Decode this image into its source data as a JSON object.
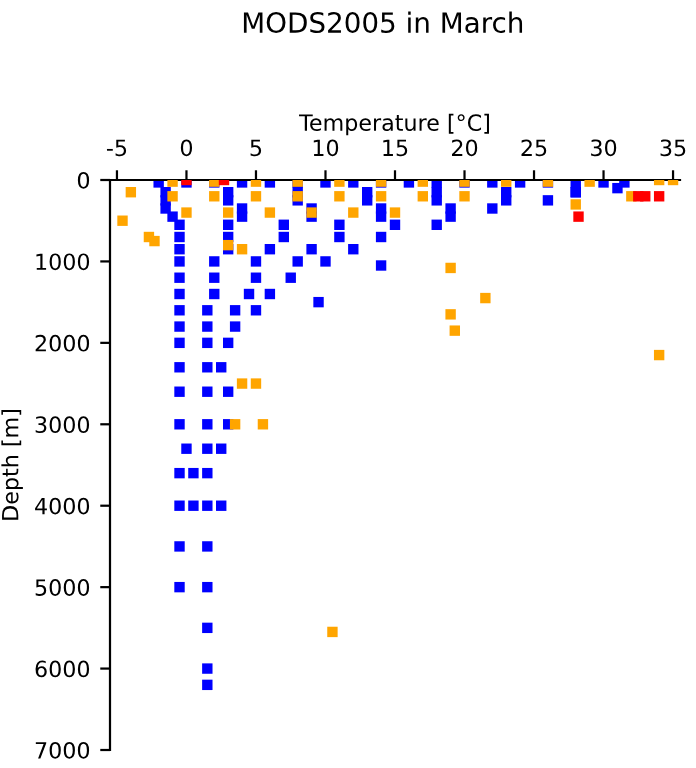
{
  "chart_data": {
    "type": "scatter",
    "title": "MODS2005 in March",
    "xlabel": "Temperature [°C]",
    "ylabel": "Depth [m]",
    "xlim": [
      -5.5,
      35.5
    ],
    "xticks": [
      -5,
      0,
      5,
      10,
      15,
      20,
      25,
      30,
      35
    ],
    "ylim": [
      7000,
      0
    ],
    "yticks": [
      0,
      1000,
      2000,
      3000,
      4000,
      5000,
      6000,
      7000
    ],
    "grid": false,
    "marker": "square",
    "series": [
      {
        "color": "#0000ff",
        "x": [
          -2,
          0,
          2,
          4,
          6,
          8,
          10,
          12,
          14,
          16,
          18,
          20,
          22,
          24,
          26,
          28,
          30,
          31.5,
          -1.5,
          3,
          8,
          13,
          18,
          23,
          28,
          -1.5,
          3,
          8,
          13,
          18,
          23,
          26,
          -1.5,
          4,
          9,
          14,
          19,
          22,
          -1,
          4,
          9,
          14,
          19,
          -0.5,
          3,
          7,
          11,
          15,
          18,
          -0.5,
          3,
          7,
          11,
          14,
          -0.5,
          3,
          6,
          9,
          12,
          -0.5,
          2,
          5,
          8,
          10,
          -0.5,
          2,
          5,
          7.5,
          -0.5,
          2,
          4.5,
          6,
          -0.5,
          1.5,
          3.5,
          5,
          -0.5,
          1.5,
          3.5,
          -0.5,
          1.5,
          3,
          -0.5,
          1.5,
          2.5,
          -0.5,
          1.5,
          3,
          -0.5,
          1.5,
          3,
          0,
          1.5,
          2.5,
          -0.5,
          0.5,
          1.5,
          -0.5,
          0.5,
          1.5,
          2.5,
          -0.5,
          1.5,
          -0.5,
          1.5,
          1.5,
          1.5,
          1.5,
          9.5,
          14,
          28,
          31
        ],
        "values": [
          30,
          30,
          30,
          30,
          30,
          30,
          30,
          30,
          30,
          30,
          30,
          30,
          30,
          30,
          30,
          30,
          30,
          30,
          150,
          150,
          150,
          150,
          150,
          150,
          150,
          250,
          250,
          250,
          250,
          250,
          250,
          250,
          350,
          350,
          350,
          350,
          350,
          350,
          450,
          450,
          450,
          450,
          450,
          550,
          550,
          550,
          550,
          550,
          550,
          700,
          700,
          700,
          700,
          700,
          850,
          850,
          850,
          850,
          850,
          1000,
          1000,
          1000,
          1000,
          1000,
          1200,
          1200,
          1200,
          1200,
          1400,
          1400,
          1400,
          1400,
          1600,
          1600,
          1600,
          1600,
          1800,
          1800,
          1800,
          2000,
          2000,
          2000,
          2300,
          2300,
          2300,
          2600,
          2600,
          2600,
          3000,
          3000,
          3000,
          3300,
          3300,
          3300,
          3600,
          3600,
          3600,
          4000,
          4000,
          4000,
          4000,
          4500,
          4500,
          5000,
          5000,
          5500,
          6000,
          6200,
          1500,
          1050,
          150,
          100
        ]
      },
      {
        "color": "#ffa500",
        "x": [
          -1,
          2,
          5,
          8,
          11,
          14,
          17,
          20,
          23,
          26,
          29,
          -1,
          2,
          5,
          8,
          11,
          14,
          17,
          20,
          0,
          3,
          6,
          9,
          12,
          15,
          -4.6,
          -2.7,
          -2.3,
          3,
          4,
          19,
          19,
          19.3,
          21.5,
          34,
          4,
          5,
          3.5,
          5.5,
          10.5,
          32,
          34,
          35,
          28,
          -4
        ],
        "values": [
          20,
          20,
          20,
          20,
          20,
          20,
          20,
          20,
          20,
          20,
          20,
          200,
          200,
          200,
          200,
          200,
          200,
          200,
          200,
          400,
          400,
          400,
          400,
          400,
          400,
          500,
          700,
          750,
          800,
          850,
          1080,
          1650,
          1850,
          1450,
          2150,
          2500,
          2500,
          3000,
          3000,
          5550,
          200,
          0,
          0,
          300,
          150
        ]
      },
      {
        "color": "#ff0000",
        "x": [
          0,
          2.7,
          32.5,
          33,
          34,
          28.2
        ],
        "values": [
          0,
          0,
          200,
          200,
          200,
          450
        ]
      }
    ]
  }
}
